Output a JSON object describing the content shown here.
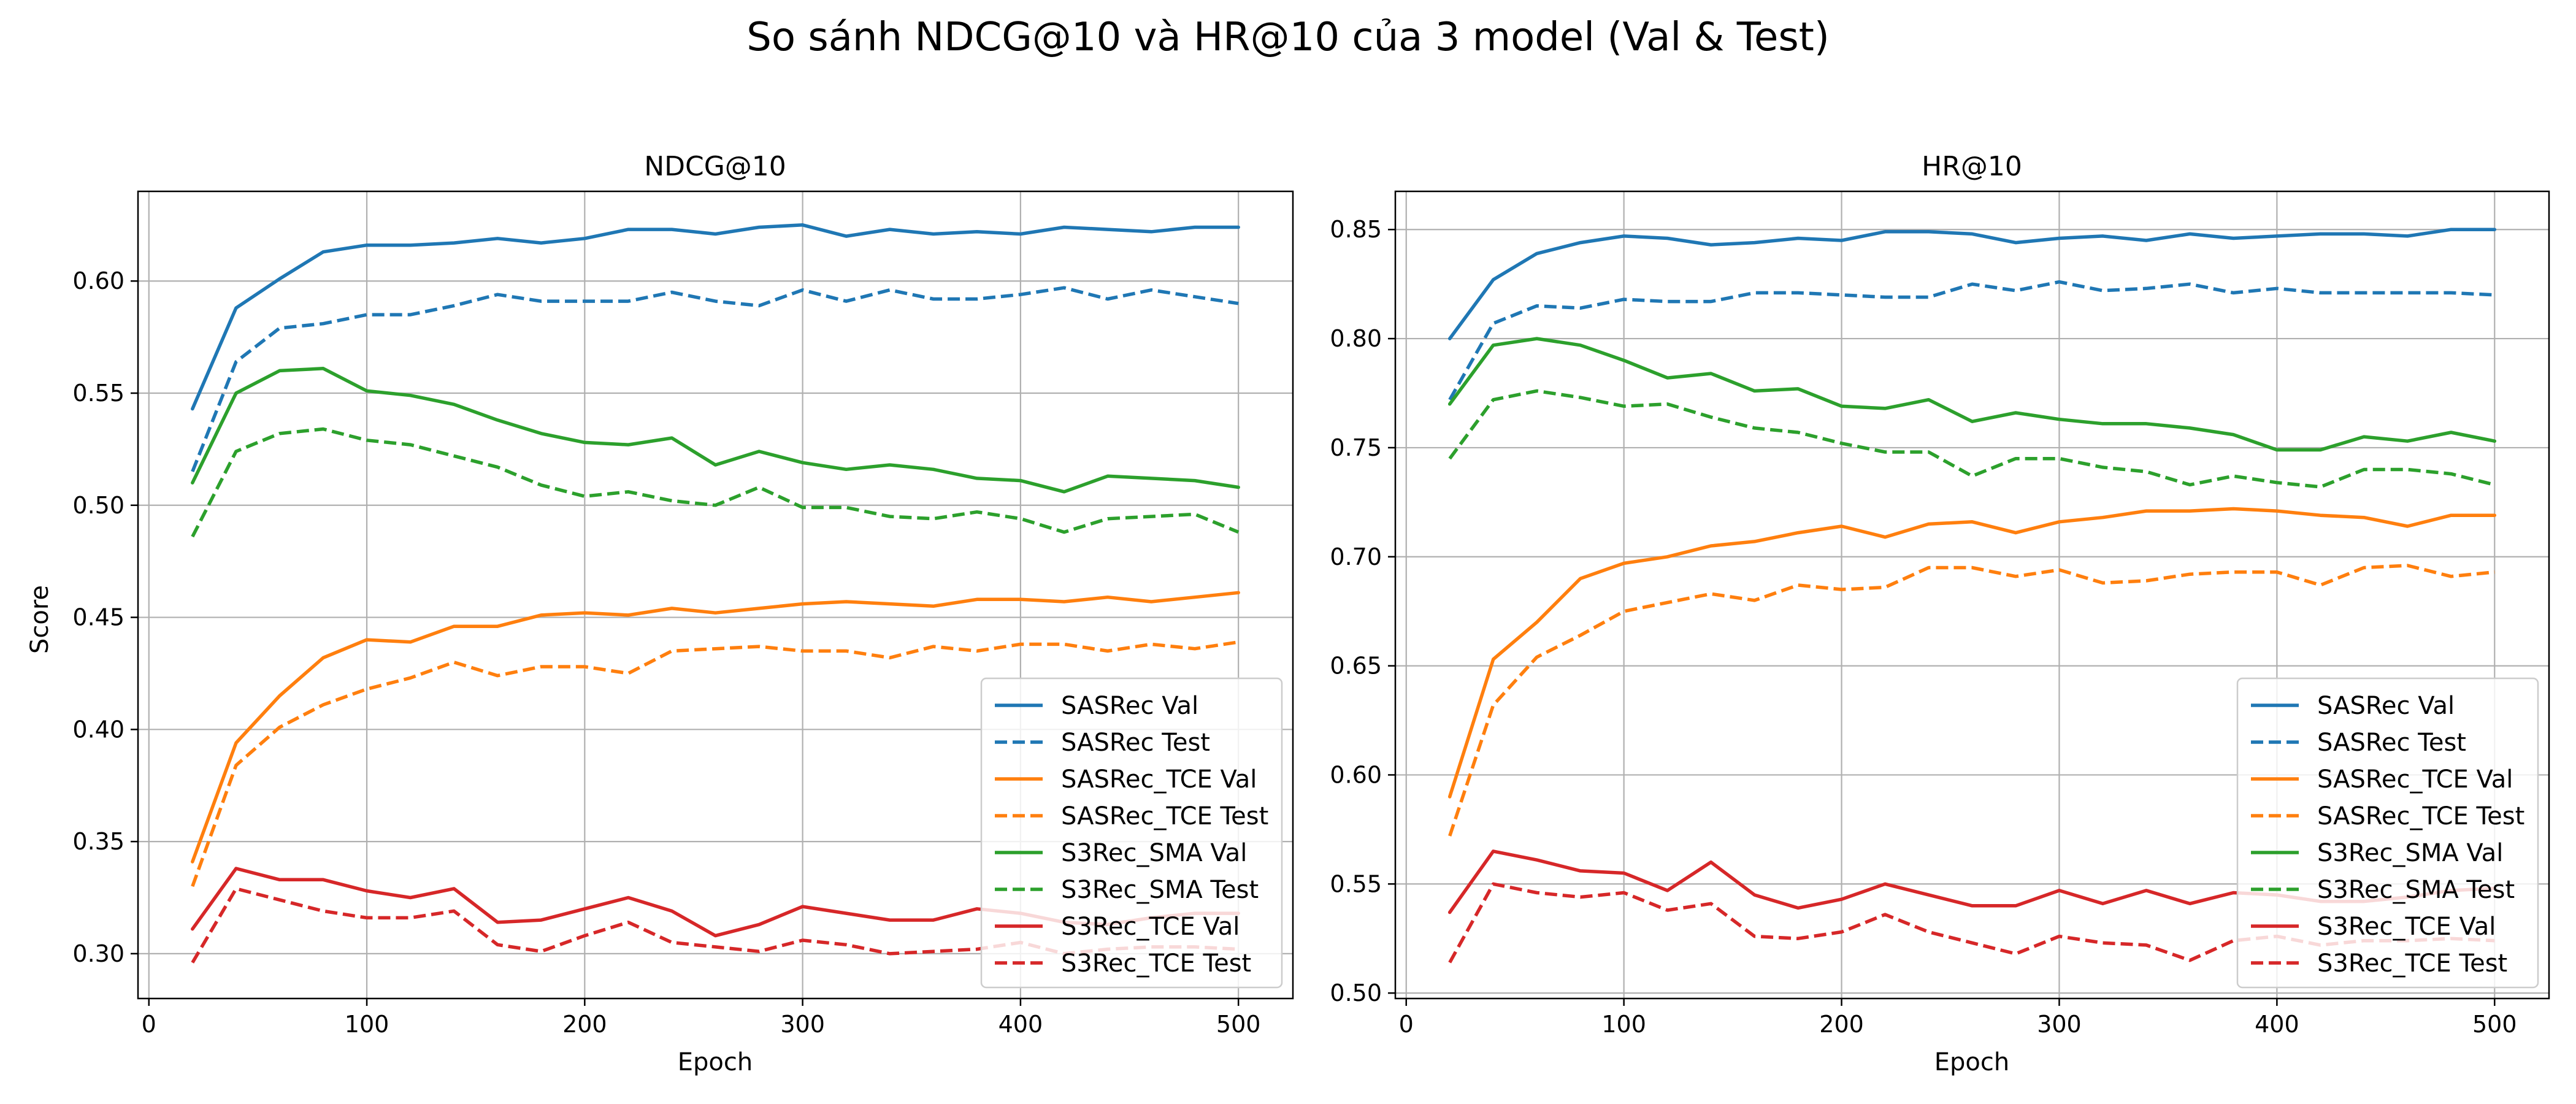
{
  "figure": {
    "title": "So sánh NDCG@10 và HR@10 của 3 model (Val & Test)"
  },
  "series_styles": [
    {
      "name": "SASRec Val",
      "color": "#1f77b4",
      "dash": "solid"
    },
    {
      "name": "SASRec Test",
      "color": "#1f77b4",
      "dash": "dashed"
    },
    {
      "name": "SASRec_TCE Val",
      "color": "#ff7f0e",
      "dash": "solid"
    },
    {
      "name": "SASRec_TCE Test",
      "color": "#ff7f0e",
      "dash": "dashed"
    },
    {
      "name": "S3Rec_SMA Val",
      "color": "#2ca02c",
      "dash": "solid"
    },
    {
      "name": "S3Rec_SMA Test",
      "color": "#2ca02c",
      "dash": "dashed"
    },
    {
      "name": "S3Rec_TCE Val",
      "color": "#d62728",
      "dash": "solid"
    },
    {
      "name": "S3Rec_TCE Test",
      "color": "#d62728",
      "dash": "dashed"
    }
  ],
  "chart_data": [
    {
      "type": "line",
      "title": "NDCG@10",
      "xlabel": "Epoch",
      "ylabel": "Score",
      "xlim": [
        -5,
        525
      ],
      "ylim": [
        0.28,
        0.64
      ],
      "xticks": [
        0,
        100,
        200,
        300,
        400,
        500
      ],
      "yticks": [
        0.3,
        0.35,
        0.4,
        0.45,
        0.5,
        0.55,
        0.6
      ],
      "grid": true,
      "legend": "lower right",
      "x": [
        20,
        40,
        60,
        80,
        100,
        120,
        140,
        160,
        180,
        200,
        220,
        240,
        260,
        280,
        300,
        320,
        340,
        360,
        380,
        400,
        420,
        440,
        460,
        480,
        500
      ],
      "series": [
        {
          "name": "SASRec Val",
          "values": [
            0.543,
            0.588,
            0.601,
            0.613,
            0.616,
            0.616,
            0.617,
            0.619,
            0.617,
            0.619,
            0.623,
            0.623,
            0.621,
            0.624,
            0.625,
            0.62,
            0.623,
            0.621,
            0.622,
            0.621,
            0.624,
            0.623,
            0.622,
            0.624,
            0.624
          ]
        },
        {
          "name": "SASRec Test",
          "values": [
            0.515,
            0.564,
            0.579,
            0.581,
            0.585,
            0.585,
            0.589,
            0.594,
            0.591,
            0.591,
            0.591,
            0.595,
            0.591,
            0.589,
            0.596,
            0.591,
            0.596,
            0.592,
            0.592,
            0.594,
            0.597,
            0.592,
            0.596,
            0.593,
            0.59
          ]
        },
        {
          "name": "SASRec_TCE Val",
          "values": [
            0.341,
            0.394,
            0.415,
            0.432,
            0.44,
            0.439,
            0.446,
            0.446,
            0.451,
            0.452,
            0.451,
            0.454,
            0.452,
            0.454,
            0.456,
            0.457,
            0.456,
            0.455,
            0.458,
            0.458,
            0.457,
            0.459,
            0.457,
            0.459,
            0.461
          ]
        },
        {
          "name": "SASRec_TCE Test",
          "values": [
            0.33,
            0.384,
            0.401,
            0.411,
            0.418,
            0.423,
            0.43,
            0.424,
            0.428,
            0.428,
            0.425,
            0.435,
            0.436,
            0.437,
            0.435,
            0.435,
            0.432,
            0.437,
            0.435,
            0.438,
            0.438,
            0.435,
            0.438,
            0.436,
            0.439
          ]
        },
        {
          "name": "S3Rec_SMA Val",
          "values": [
            0.51,
            0.55,
            0.56,
            0.561,
            0.551,
            0.549,
            0.545,
            0.538,
            0.532,
            0.528,
            0.527,
            0.53,
            0.518,
            0.524,
            0.519,
            0.516,
            0.518,
            0.516,
            0.512,
            0.511,
            0.506,
            0.513,
            0.512,
            0.511,
            0.508
          ]
        },
        {
          "name": "S3Rec_SMA Test",
          "values": [
            0.486,
            0.524,
            0.532,
            0.534,
            0.529,
            0.527,
            0.522,
            0.517,
            0.509,
            0.504,
            0.506,
            0.502,
            0.5,
            0.508,
            0.499,
            0.499,
            0.495,
            0.494,
            0.497,
            0.494,
            0.488,
            0.494,
            0.495,
            0.496,
            0.488
          ]
        },
        {
          "name": "S3Rec_TCE Val",
          "values": [
            0.311,
            0.338,
            0.333,
            0.333,
            0.328,
            0.325,
            0.329,
            0.314,
            0.315,
            0.32,
            0.325,
            0.319,
            0.308,
            0.313,
            0.321,
            0.318,
            0.315,
            0.315,
            0.32,
            0.318,
            0.314,
            0.313,
            0.316,
            0.318,
            0.318
          ]
        },
        {
          "name": "S3Rec_TCE Test",
          "values": [
            0.296,
            0.329,
            0.324,
            0.319,
            0.316,
            0.316,
            0.319,
            0.304,
            0.301,
            0.308,
            0.314,
            0.305,
            0.303,
            0.301,
            0.306,
            0.304,
            0.3,
            0.301,
            0.302,
            0.305,
            0.3,
            0.302,
            0.303,
            0.303,
            0.302
          ]
        }
      ]
    },
    {
      "type": "line",
      "title": "HR@10",
      "xlabel": "Epoch",
      "ylabel": "",
      "xlim": [
        -5,
        525
      ],
      "ylim": [
        0.4975,
        0.8675
      ],
      "xticks": [
        0,
        100,
        200,
        300,
        400,
        500
      ],
      "yticks": [
        0.5,
        0.55,
        0.6,
        0.65,
        0.7,
        0.75,
        0.8,
        0.85
      ],
      "grid": true,
      "legend": "lower right",
      "x": [
        20,
        40,
        60,
        80,
        100,
        120,
        140,
        160,
        180,
        200,
        220,
        240,
        260,
        280,
        300,
        320,
        340,
        360,
        380,
        400,
        420,
        440,
        460,
        480,
        500
      ],
      "series": [
        {
          "name": "SASRec Val",
          "values": [
            0.8,
            0.827,
            0.839,
            0.844,
            0.847,
            0.846,
            0.843,
            0.844,
            0.846,
            0.845,
            0.849,
            0.849,
            0.848,
            0.844,
            0.846,
            0.847,
            0.845,
            0.848,
            0.846,
            0.847,
            0.848,
            0.848,
            0.847,
            0.85,
            0.85
          ]
        },
        {
          "name": "SASRec Test",
          "values": [
            0.772,
            0.807,
            0.815,
            0.814,
            0.818,
            0.817,
            0.817,
            0.821,
            0.821,
            0.82,
            0.819,
            0.819,
            0.825,
            0.822,
            0.826,
            0.822,
            0.823,
            0.825,
            0.821,
            0.823,
            0.821,
            0.821,
            0.821,
            0.821,
            0.82
          ]
        },
        {
          "name": "SASRec_TCE Val",
          "values": [
            0.59,
            0.653,
            0.67,
            0.69,
            0.697,
            0.7,
            0.705,
            0.707,
            0.711,
            0.714,
            0.709,
            0.715,
            0.716,
            0.711,
            0.716,
            0.718,
            0.721,
            0.721,
            0.722,
            0.721,
            0.719,
            0.718,
            0.714,
            0.719,
            0.719
          ]
        },
        {
          "name": "SASRec_TCE Test",
          "values": [
            0.572,
            0.632,
            0.654,
            0.664,
            0.675,
            0.679,
            0.683,
            0.68,
            0.687,
            0.685,
            0.686,
            0.695,
            0.695,
            0.691,
            0.694,
            0.688,
            0.689,
            0.692,
            0.693,
            0.693,
            0.687,
            0.695,
            0.696,
            0.691,
            0.693
          ]
        },
        {
          "name": "S3Rec_SMA Val",
          "values": [
            0.77,
            0.797,
            0.8,
            0.797,
            0.79,
            0.782,
            0.784,
            0.776,
            0.777,
            0.769,
            0.768,
            0.772,
            0.762,
            0.766,
            0.763,
            0.761,
            0.761,
            0.759,
            0.756,
            0.749,
            0.749,
            0.755,
            0.753,
            0.757,
            0.753
          ]
        },
        {
          "name": "S3Rec_SMA Test",
          "values": [
            0.745,
            0.772,
            0.776,
            0.773,
            0.769,
            0.77,
            0.764,
            0.759,
            0.757,
            0.752,
            0.748,
            0.748,
            0.737,
            0.745,
            0.745,
            0.741,
            0.739,
            0.733,
            0.737,
            0.734,
            0.732,
            0.74,
            0.74,
            0.738,
            0.733
          ]
        },
        {
          "name": "S3Rec_TCE Val",
          "values": [
            0.537,
            0.565,
            0.561,
            0.556,
            0.555,
            0.547,
            0.56,
            0.545,
            0.539,
            0.543,
            0.55,
            0.545,
            0.54,
            0.54,
            0.547,
            0.541,
            0.547,
            0.541,
            0.546,
            0.545,
            0.542,
            0.542,
            0.544,
            0.547,
            0.548
          ]
        },
        {
          "name": "S3Rec_TCE Test",
          "values": [
            0.514,
            0.55,
            0.546,
            0.544,
            0.546,
            0.538,
            0.541,
            0.526,
            0.525,
            0.528,
            0.536,
            0.528,
            0.523,
            0.518,
            0.526,
            0.523,
            0.522,
            0.515,
            0.524,
            0.526,
            0.522,
            0.524,
            0.524,
            0.525,
            0.524
          ]
        }
      ]
    }
  ]
}
